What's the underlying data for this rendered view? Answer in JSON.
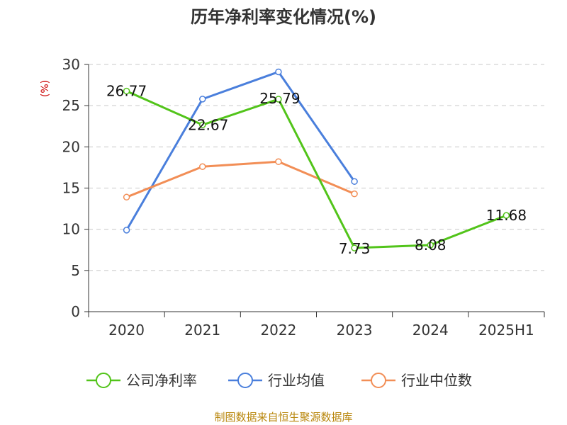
{
  "chart_data": {
    "type": "line",
    "title": "历年净利率变化情况(%)",
    "ylabel": "(%)",
    "xlabel": "",
    "categories": [
      "2020",
      "2021",
      "2022",
      "2023",
      "2024",
      "2025H1"
    ],
    "ylim": [
      0,
      30
    ],
    "yticks": [
      "0",
      "5",
      "10",
      "15",
      "20",
      "25",
      "30"
    ],
    "grid": true,
    "legend_position": "bottom",
    "series": [
      {
        "name": "公司净利率",
        "color": "#52c41a",
        "values": [
          26.77,
          22.67,
          25.79,
          7.73,
          8.08,
          11.68
        ],
        "labels": [
          "26.77",
          "22.67",
          "25.79",
          "7.73",
          "8.08",
          "11.68"
        ]
      },
      {
        "name": "行业均值",
        "color": "#4a7fdc",
        "values": [
          9.9,
          25.8,
          29.1,
          15.8,
          null,
          null
        ]
      },
      {
        "name": "行业中位数",
        "color": "#f28e56",
        "values": [
          13.9,
          17.6,
          18.2,
          14.3,
          null,
          null
        ]
      }
    ]
  },
  "source": "制图数据来自恒生聚源数据库"
}
